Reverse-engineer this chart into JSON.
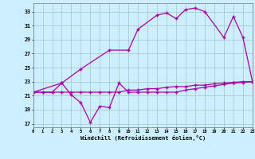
{
  "xlabel": "Windchill (Refroidissement éolien,°C)",
  "bg_color": "#cceeff",
  "grid_color": "#aacccc",
  "line_color": "#aa00aa",
  "x_ticks": [
    0,
    1,
    2,
    3,
    4,
    5,
    6,
    7,
    8,
    9,
    10,
    11,
    12,
    13,
    14,
    15,
    16,
    17,
    18,
    19,
    20,
    21,
    22,
    23
  ],
  "y_ticks": [
    17,
    19,
    21,
    23,
    25,
    27,
    29,
    31,
    33
  ],
  "xlim": [
    0,
    23
  ],
  "ylim": [
    16.5,
    34.2
  ],
  "line1_x": [
    0,
    1,
    2,
    3,
    4,
    5,
    6,
    7,
    8,
    9,
    10,
    11,
    12,
    13,
    14,
    15,
    16,
    17,
    18,
    19,
    20,
    21,
    22,
    23
  ],
  "line1_y": [
    21.5,
    21.5,
    21.5,
    21.5,
    21.5,
    21.5,
    21.5,
    21.5,
    21.5,
    21.5,
    21.8,
    21.8,
    22.0,
    22.0,
    22.2,
    22.3,
    22.3,
    22.5,
    22.5,
    22.7,
    22.8,
    22.9,
    23.0,
    23.0
  ],
  "line2_x": [
    0,
    1,
    2,
    3,
    4,
    5,
    6,
    7,
    8,
    9,
    10,
    11,
    12,
    13,
    14,
    15,
    16,
    17,
    18,
    19,
    20,
    21,
    22,
    23
  ],
  "line2_y": [
    21.5,
    21.5,
    21.5,
    22.8,
    21.1,
    20.0,
    17.2,
    19.5,
    19.3,
    22.8,
    21.5,
    21.5,
    21.5,
    21.5,
    21.5,
    21.5,
    21.8,
    22.0,
    22.2,
    22.4,
    22.6,
    22.8,
    22.9,
    23.0
  ],
  "line3_x": [
    0,
    3,
    5,
    8,
    10,
    11,
    13,
    14,
    15,
    16,
    17,
    18,
    20,
    21,
    22,
    23
  ],
  "line3_y": [
    21.5,
    22.8,
    24.8,
    27.5,
    27.5,
    30.5,
    32.5,
    32.8,
    32.0,
    33.3,
    33.5,
    33.0,
    29.3,
    32.3,
    29.3,
    23.0
  ]
}
